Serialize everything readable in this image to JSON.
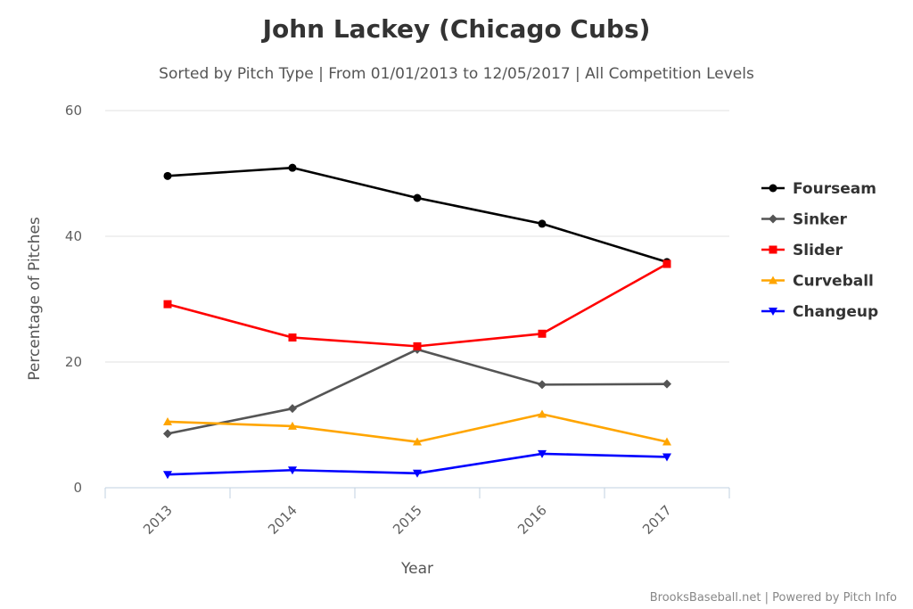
{
  "chart_data": {
    "type": "line",
    "title": "John Lackey (Chicago Cubs)",
    "subtitle": "Sorted by Pitch Type | From 01/01/2013 to 12/05/2017 | All Competition Levels",
    "xlabel": "Year",
    "ylabel": "Percentage of Pitches",
    "categories": [
      "2013",
      "2014",
      "2015",
      "2016",
      "2017"
    ],
    "ylim": [
      0,
      60
    ],
    "yticks": [
      0,
      20,
      40,
      60
    ],
    "grid": true,
    "legend_position": "right",
    "series": [
      {
        "name": "Fourseam",
        "color": "#000000",
        "marker": "circle",
        "values": [
          49.6,
          50.9,
          46.1,
          42.0,
          35.9
        ]
      },
      {
        "name": "Sinker",
        "color": "#555555",
        "marker": "diamond",
        "values": [
          8.6,
          12.6,
          22.0,
          16.4,
          16.5
        ]
      },
      {
        "name": "Slider",
        "color": "#ff0000",
        "marker": "square",
        "values": [
          29.2,
          23.9,
          22.5,
          24.5,
          35.6
        ]
      },
      {
        "name": "Curveball",
        "color": "#ffa500",
        "marker": "triangle",
        "values": [
          10.5,
          9.8,
          7.3,
          11.7,
          7.3
        ]
      },
      {
        "name": "Changeup",
        "color": "#0000ff",
        "marker": "triangle-down",
        "values": [
          2.1,
          2.8,
          2.3,
          5.4,
          4.9
        ]
      }
    ]
  },
  "credit": "BrooksBaseball.net | Powered by Pitch Info"
}
